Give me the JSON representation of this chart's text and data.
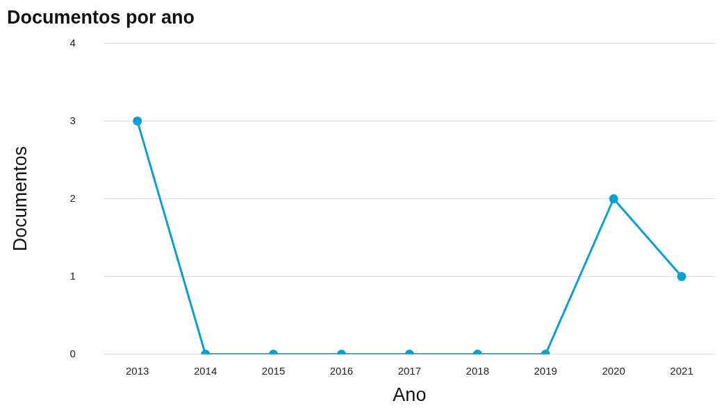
{
  "chart_data": {
    "type": "line",
    "title": "Documentos por ano",
    "xlabel": "Ano",
    "ylabel": "Documentos",
    "categories": [
      "2013",
      "2014",
      "2015",
      "2016",
      "2017",
      "2018",
      "2019",
      "2020",
      "2021"
    ],
    "series": [
      {
        "color": "#0a9fd0",
        "values": [
          3,
          0,
          0,
          0,
          0,
          0,
          0,
          2,
          1
        ]
      }
    ],
    "ylim": [
      0,
      4
    ],
    "yticks": [
      0,
      1,
      2,
      3,
      4
    ],
    "grid": "y",
    "legend": false,
    "marker": "circle",
    "line_style": "solid"
  }
}
